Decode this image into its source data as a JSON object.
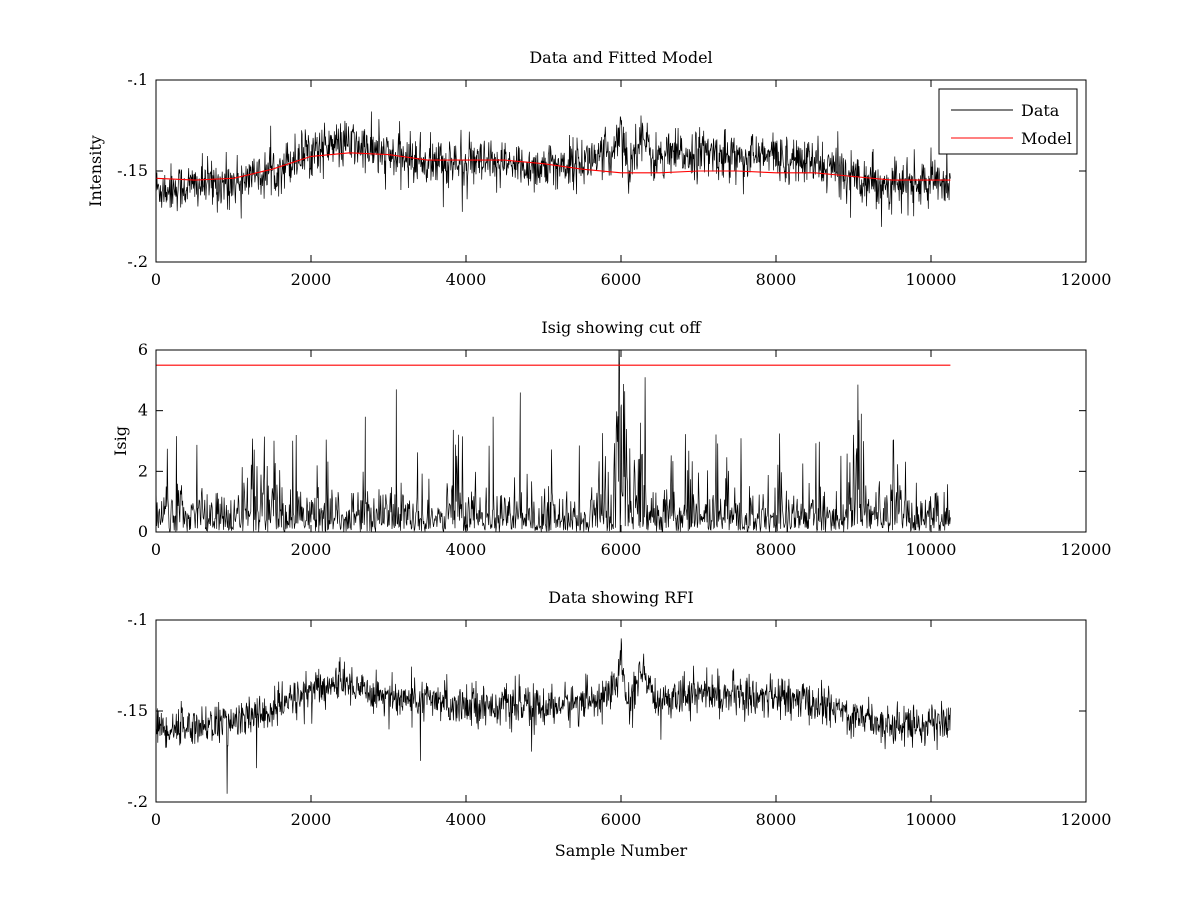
{
  "chart_data": [
    {
      "type": "line",
      "title": "Data and Fitted Model",
      "xlabel": "",
      "ylabel": "Intensity",
      "xlim": [
        0,
        12000
      ],
      "ylim": [
        -0.2,
        -0.1
      ],
      "xticks": [
        0,
        2000,
        4000,
        6000,
        8000,
        10000,
        12000
      ],
      "yticks": [
        -0.2,
        -0.15,
        -0.1
      ],
      "legend": {
        "placement": "top-right",
        "entries": [
          "Data",
          "Model"
        ]
      },
      "grid": false,
      "series": [
        {
          "name": "Data",
          "color": "#000000",
          "noise_amplitude": 0.012,
          "x": [
            0,
            500,
            1000,
            1500,
            2000,
            2500,
            3000,
            3500,
            4000,
            4500,
            5000,
            5500,
            5900,
            6000,
            6100,
            6250,
            6400,
            7000,
            7500,
            8000,
            8500,
            9000,
            9500,
            10250
          ],
          "y": [
            -0.16,
            -0.158,
            -0.156,
            -0.15,
            -0.138,
            -0.135,
            -0.142,
            -0.145,
            -0.146,
            -0.147,
            -0.148,
            -0.145,
            -0.14,
            -0.122,
            -0.15,
            -0.128,
            -0.143,
            -0.14,
            -0.142,
            -0.142,
            -0.146,
            -0.152,
            -0.158,
            -0.156
          ]
        },
        {
          "name": "Model",
          "color": "#ff0000",
          "x": [
            0,
            500,
            1000,
            1500,
            2000,
            2500,
            3000,
            3500,
            4000,
            4500,
            5000,
            5500,
            6000,
            6500,
            7000,
            7500,
            8000,
            8500,
            9000,
            9500,
            10250
          ],
          "y": [
            -0.154,
            -0.155,
            -0.154,
            -0.149,
            -0.142,
            -0.14,
            -0.141,
            -0.144,
            -0.144,
            -0.144,
            -0.146,
            -0.149,
            -0.151,
            -0.151,
            -0.15,
            -0.15,
            -0.151,
            -0.151,
            -0.153,
            -0.155,
            -0.155
          ]
        }
      ]
    },
    {
      "type": "line",
      "title": "Isig showing cut off",
      "xlabel": "",
      "ylabel": "Isig",
      "xlim": [
        0,
        12000
      ],
      "ylim": [
        0,
        6
      ],
      "xticks": [
        0,
        2000,
        4000,
        6000,
        8000,
        10000,
        12000
      ],
      "yticks": [
        0,
        2,
        4,
        6
      ],
      "grid": false,
      "series": [
        {
          "color": "#000000",
          "spikes": [
            [
              3100,
              4.7
            ],
            [
              4700,
              4.6
            ],
            [
              2700,
              3.8
            ],
            [
              6000,
              4.1
            ],
            [
              6250,
              3.6
            ],
            [
              9100,
              3.9
            ],
            [
              4350,
              3.8
            ],
            [
              9000,
              3.2
            ]
          ],
          "typical_max": 2.2
        },
        {
          "color": "#ff0000",
          "x": [
            0,
            10250
          ],
          "y": [
            5.5,
            5.5
          ]
        }
      ]
    },
    {
      "type": "line",
      "title": "Data showing RFI",
      "xlabel": "Sample Number",
      "ylabel": "",
      "xlim": [
        0,
        12000
      ],
      "ylim": [
        -0.2,
        -0.1
      ],
      "xticks": [
        0,
        2000,
        4000,
        6000,
        8000,
        10000,
        12000
      ],
      "yticks": [
        -0.2,
        -0.15,
        -0.1
      ],
      "grid": false,
      "series": [
        {
          "color": "#000000",
          "noise_amplitude": 0.01,
          "x": [
            0,
            500,
            1000,
            1500,
            2000,
            2500,
            3000,
            3500,
            4000,
            4500,
            5000,
            5500,
            5900,
            6000,
            6100,
            6250,
            6400,
            7000,
            7500,
            8000,
            8500,
            9000,
            9500,
            10250
          ],
          "y": [
            -0.16,
            -0.158,
            -0.156,
            -0.15,
            -0.138,
            -0.135,
            -0.142,
            -0.145,
            -0.146,
            -0.147,
            -0.148,
            -0.145,
            -0.14,
            -0.122,
            -0.15,
            -0.128,
            -0.143,
            -0.14,
            -0.142,
            -0.142,
            -0.146,
            -0.152,
            -0.158,
            -0.156
          ]
        }
      ]
    }
  ]
}
